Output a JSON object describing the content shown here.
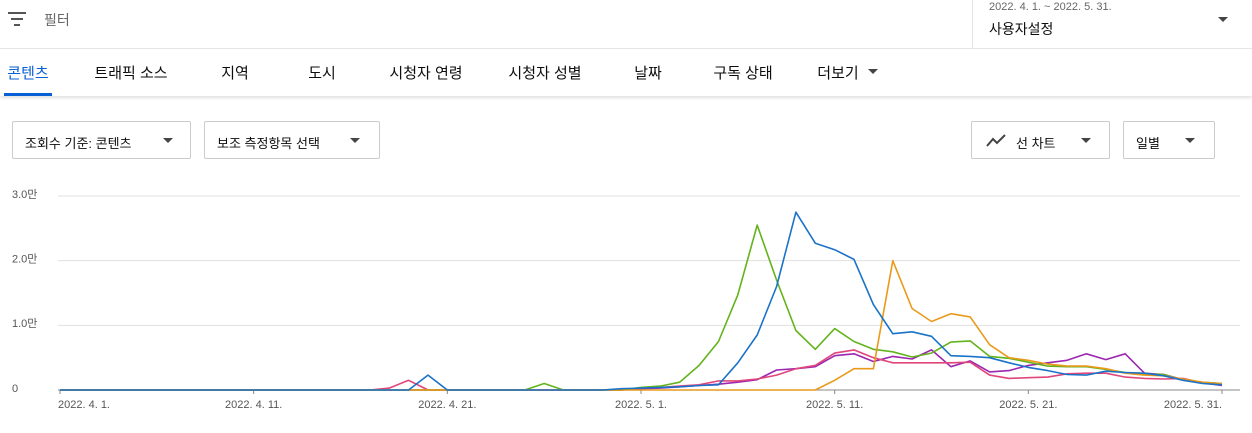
{
  "header": {
    "filter_label": "필터",
    "date_range": "2022. 4. 1. ~ 2022. 5. 31.",
    "period": "사용자설정"
  },
  "tabs": [
    "콘텐츠",
    "트래픽 소스",
    "지역",
    "도시",
    "시청자 연령",
    "시청자 성별",
    "날짜",
    "구독 상태",
    "더보기"
  ],
  "controls": {
    "metric": "조회수 기준: 콘텐츠",
    "secondary": "보조 측정항목 선택",
    "chart_type": "선 차트",
    "interval": "일별"
  },
  "chart_data": {
    "type": "line",
    "x": [
      "2022-04-01",
      "2022-04-02",
      "2022-04-03",
      "2022-04-04",
      "2022-04-05",
      "2022-04-06",
      "2022-04-07",
      "2022-04-08",
      "2022-04-09",
      "2022-04-10",
      "2022-04-11",
      "2022-04-12",
      "2022-04-13",
      "2022-04-14",
      "2022-04-15",
      "2022-04-16",
      "2022-04-17",
      "2022-04-18",
      "2022-04-19",
      "2022-04-20",
      "2022-04-21",
      "2022-04-22",
      "2022-04-23",
      "2022-04-24",
      "2022-04-25",
      "2022-04-26",
      "2022-04-27",
      "2022-04-28",
      "2022-04-29",
      "2022-04-30",
      "2022-05-01",
      "2022-05-02",
      "2022-05-03",
      "2022-05-04",
      "2022-05-05",
      "2022-05-06",
      "2022-05-07",
      "2022-05-08",
      "2022-05-09",
      "2022-05-10",
      "2022-05-11",
      "2022-05-12",
      "2022-05-13",
      "2022-05-14",
      "2022-05-15",
      "2022-05-16",
      "2022-05-17",
      "2022-05-18",
      "2022-05-19",
      "2022-05-20",
      "2022-05-21",
      "2022-05-22",
      "2022-05-23",
      "2022-05-24",
      "2022-05-25",
      "2022-05-26",
      "2022-05-27",
      "2022-05-28",
      "2022-05-29",
      "2022-05-30",
      "2022-05-31"
    ],
    "xlim": [
      "2022-04-01",
      "2022-05-31"
    ],
    "xticks": [
      {
        "value": "2022-04-01",
        "label": "2022. 4. 1."
      },
      {
        "value": "2022-04-11",
        "label": "2022. 4. 11."
      },
      {
        "value": "2022-04-21",
        "label": "2022. 4. 21."
      },
      {
        "value": "2022-05-01",
        "label": "2022. 5. 1."
      },
      {
        "value": "2022-05-11",
        "label": "2022. 5. 11."
      },
      {
        "value": "2022-05-21",
        "label": "2022. 5. 21."
      },
      {
        "value": "2022-05-31",
        "label": "2022. 5. 31."
      }
    ],
    "ylim": [
      0,
      30000
    ],
    "yticks": [
      0,
      {
        "value": 10000,
        "label": "1.0만"
      },
      {
        "value": 20000,
        "label": "2.0만"
      },
      {
        "value": 30000,
        "label": "3.0만"
      }
    ],
    "grid": true,
    "series": [
      {
        "color": "#9c27b0",
        "values": [
          0,
          0,
          0,
          0,
          0,
          0,
          0,
          0,
          0,
          0,
          0,
          0,
          0,
          0,
          0,
          0,
          0,
          0,
          0,
          0,
          0,
          0,
          0,
          0,
          0,
          0,
          0,
          0,
          0,
          0,
          200,
          300,
          500,
          700,
          900,
          1200,
          1600,
          3100,
          3300,
          3600,
          5300,
          5600,
          4400,
          5200,
          4800,
          6200,
          3600,
          4500,
          2800,
          3000,
          3800,
          4200,
          4600,
          5600,
          4700,
          5600,
          2600,
          2400,
          1600,
          1100,
          700
        ]
      },
      {
        "color": "#e0457b",
        "values": [
          0,
          0,
          0,
          0,
          0,
          0,
          0,
          0,
          0,
          0,
          0,
          0,
          0,
          0,
          0,
          0,
          0,
          300,
          1500,
          0,
          0,
          0,
          0,
          0,
          0,
          0,
          0,
          0,
          0,
          0,
          300,
          400,
          600,
          800,
          1400,
          1400,
          1700,
          2300,
          3300,
          3800,
          5700,
          6200,
          5000,
          4200,
          4200,
          4200,
          4200,
          4300,
          2300,
          1800,
          1900,
          2000,
          2500,
          2600,
          2600,
          2000,
          1800,
          1700,
          1800,
          1100,
          800
        ]
      },
      {
        "color": "#63b31c",
        "values": [
          0,
          0,
          0,
          0,
          0,
          0,
          0,
          0,
          0,
          0,
          0,
          0,
          0,
          0,
          0,
          0,
          0,
          0,
          0,
          0,
          0,
          0,
          0,
          0,
          0,
          1000,
          0,
          0,
          0,
          0,
          400,
          600,
          1200,
          3800,
          7500,
          14700,
          25500,
          17000,
          9200,
          6300,
          9500,
          7500,
          6300,
          5900,
          5100,
          5700,
          7400,
          7600,
          5200,
          4900,
          4300,
          3700,
          3600,
          3600,
          3200,
          2700,
          2500,
          2400,
          1500,
          1200,
          1000
        ]
      },
      {
        "color": "#e99a1b",
        "values": [
          0,
          0,
          0,
          0,
          0,
          0,
          0,
          0,
          0,
          0,
          0,
          0,
          0,
          0,
          0,
          0,
          0,
          0,
          0,
          0,
          0,
          0,
          0,
          0,
          0,
          0,
          0,
          0,
          0,
          0,
          0,
          0,
          0,
          0,
          0,
          0,
          0,
          0,
          0,
          0,
          1500,
          3300,
          3300,
          20000,
          12600,
          10600,
          11800,
          11300,
          7000,
          5000,
          4600,
          4000,
          3700,
          3700,
          3300,
          2600,
          2300,
          2200,
          1700,
          1200,
          1000
        ]
      },
      {
        "color": "#1a73c8",
        "values": [
          0,
          0,
          0,
          0,
          0,
          0,
          0,
          0,
          0,
          0,
          0,
          0,
          0,
          0,
          0,
          0,
          0,
          0,
          0,
          2300,
          0,
          0,
          0,
          0,
          0,
          0,
          0,
          0,
          0,
          200,
          300,
          400,
          500,
          700,
          800,
          4200,
          8500,
          16000,
          27500,
          22700,
          21700,
          20200,
          13200,
          8700,
          9000,
          8300,
          5300,
          5200,
          5000,
          4200,
          3500,
          3000,
          2400,
          2300,
          2900,
          2700,
          2600,
          2200,
          1500,
          1000,
          800
        ]
      }
    ]
  }
}
